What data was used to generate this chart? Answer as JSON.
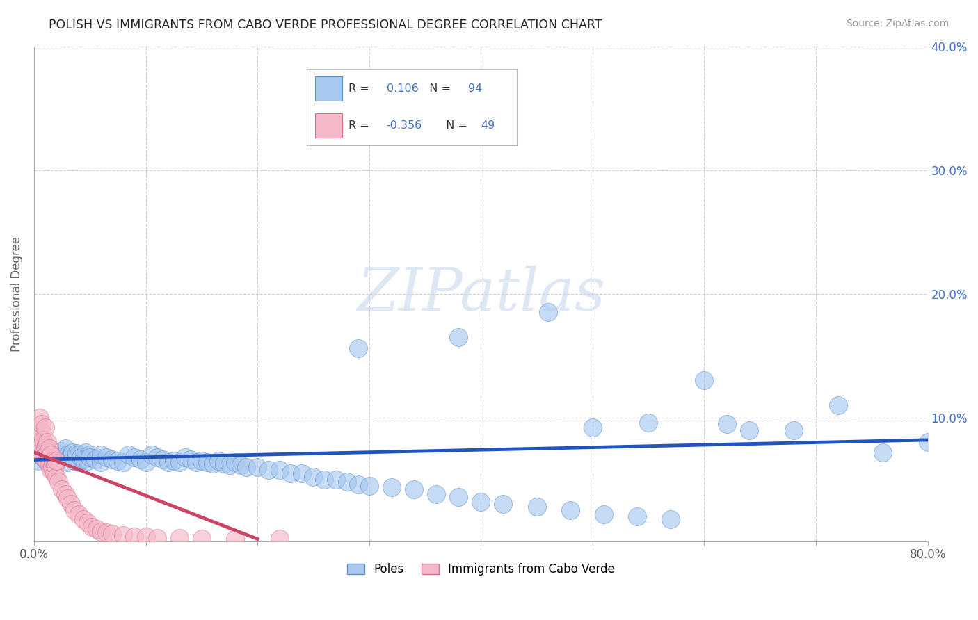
{
  "title": "POLISH VS IMMIGRANTS FROM CABO VERDE PROFESSIONAL DEGREE CORRELATION CHART",
  "source": "Source: ZipAtlas.com",
  "ylabel": "Professional Degree",
  "xlim": [
    0.0,
    0.8
  ],
  "ylim": [
    0.0,
    0.4
  ],
  "xticks": [
    0.0,
    0.1,
    0.2,
    0.3,
    0.4,
    0.5,
    0.6,
    0.7,
    0.8
  ],
  "yticks": [
    0.0,
    0.1,
    0.2,
    0.3,
    0.4
  ],
  "right_ytick_labels": [
    "",
    "10.0%",
    "20.0%",
    "30.0%",
    "40.0%"
  ],
  "poles_R": 0.106,
  "poles_N": 94,
  "cabo_verde_R": -0.356,
  "cabo_verde_N": 49,
  "poles_color": "#a8c8f0",
  "cabo_verde_color": "#f5b8c8",
  "poles_edge_color": "#6090c8",
  "cabo_verde_edge_color": "#d87090",
  "poles_line_color": "#2255bb",
  "cabo_verde_line_color": "#cc4466",
  "legend_label_poles": "Poles",
  "legend_label_cabo": "Immigrants from Cabo Verde",
  "watermark": "ZIPatlas",
  "background_color": "#ffffff",
  "grid_color": "#cccccc",
  "r_n_color": "#4472C4",
  "poles_x": [
    0.002,
    0.004,
    0.006,
    0.008,
    0.01,
    0.01,
    0.01,
    0.012,
    0.014,
    0.016,
    0.018,
    0.02,
    0.02,
    0.022,
    0.024,
    0.026,
    0.028,
    0.03,
    0.03,
    0.032,
    0.034,
    0.036,
    0.038,
    0.04,
    0.04,
    0.042,
    0.044,
    0.046,
    0.048,
    0.05,
    0.05,
    0.055,
    0.06,
    0.06,
    0.065,
    0.07,
    0.075,
    0.08,
    0.085,
    0.09,
    0.095,
    0.1,
    0.105,
    0.11,
    0.115,
    0.12,
    0.125,
    0.13,
    0.135,
    0.14,
    0.145,
    0.15,
    0.155,
    0.16,
    0.165,
    0.17,
    0.175,
    0.18,
    0.185,
    0.19,
    0.2,
    0.21,
    0.22,
    0.23,
    0.24,
    0.25,
    0.26,
    0.27,
    0.28,
    0.29,
    0.3,
    0.32,
    0.34,
    0.36,
    0.38,
    0.4,
    0.42,
    0.45,
    0.48,
    0.51,
    0.54,
    0.57,
    0.6,
    0.64,
    0.68,
    0.72,
    0.76,
    0.8,
    0.5,
    0.62,
    0.46,
    0.55,
    0.38,
    0.29
  ],
  "poles_y": [
    0.07,
    0.065,
    0.072,
    0.068,
    0.066,
    0.074,
    0.078,
    0.064,
    0.07,
    0.068,
    0.072,
    0.065,
    0.071,
    0.067,
    0.073,
    0.069,
    0.075,
    0.064,
    0.07,
    0.068,
    0.072,
    0.065,
    0.071,
    0.064,
    0.07,
    0.068,
    0.066,
    0.072,
    0.065,
    0.07,
    0.068,
    0.066,
    0.064,
    0.07,
    0.068,
    0.066,
    0.065,
    0.064,
    0.07,
    0.068,
    0.066,
    0.064,
    0.07,
    0.068,
    0.066,
    0.064,
    0.065,
    0.064,
    0.068,
    0.066,
    0.064,
    0.065,
    0.064,
    0.063,
    0.065,
    0.063,
    0.062,
    0.064,
    0.062,
    0.06,
    0.06,
    0.058,
    0.058,
    0.055,
    0.055,
    0.052,
    0.05,
    0.05,
    0.048,
    0.046,
    0.045,
    0.044,
    0.042,
    0.038,
    0.036,
    0.032,
    0.03,
    0.028,
    0.025,
    0.022,
    0.02,
    0.018,
    0.13,
    0.09,
    0.09,
    0.11,
    0.072,
    0.08,
    0.092,
    0.095,
    0.185,
    0.096,
    0.165,
    0.156
  ],
  "cabo_x": [
    0.002,
    0.003,
    0.004,
    0.005,
    0.005,
    0.006,
    0.007,
    0.007,
    0.008,
    0.008,
    0.009,
    0.01,
    0.01,
    0.011,
    0.012,
    0.012,
    0.013,
    0.014,
    0.014,
    0.015,
    0.015,
    0.016,
    0.017,
    0.018,
    0.019,
    0.02,
    0.02,
    0.022,
    0.025,
    0.028,
    0.03,
    0.033,
    0.036,
    0.04,
    0.044,
    0.048,
    0.052,
    0.056,
    0.06,
    0.065,
    0.07,
    0.08,
    0.09,
    0.1,
    0.11,
    0.13,
    0.15,
    0.18,
    0.22
  ],
  "cabo_y": [
    0.075,
    0.09,
    0.08,
    0.085,
    0.1,
    0.078,
    0.088,
    0.095,
    0.072,
    0.082,
    0.068,
    0.076,
    0.092,
    0.065,
    0.072,
    0.08,
    0.068,
    0.062,
    0.075,
    0.058,
    0.07,
    0.06,
    0.065,
    0.055,
    0.062,
    0.052,
    0.065,
    0.048,
    0.042,
    0.038,
    0.035,
    0.03,
    0.025,
    0.022,
    0.018,
    0.015,
    0.012,
    0.01,
    0.008,
    0.007,
    0.006,
    0.005,
    0.004,
    0.004,
    0.003,
    0.003,
    0.002,
    0.002,
    0.002
  ],
  "poles_line_x0": 0.0,
  "poles_line_y0": 0.066,
  "poles_line_x1": 0.8,
  "poles_line_y1": 0.082,
  "cabo_line_x0": 0.0,
  "cabo_line_y0": 0.072,
  "cabo_line_x1": 0.2,
  "cabo_line_y1": 0.002
}
